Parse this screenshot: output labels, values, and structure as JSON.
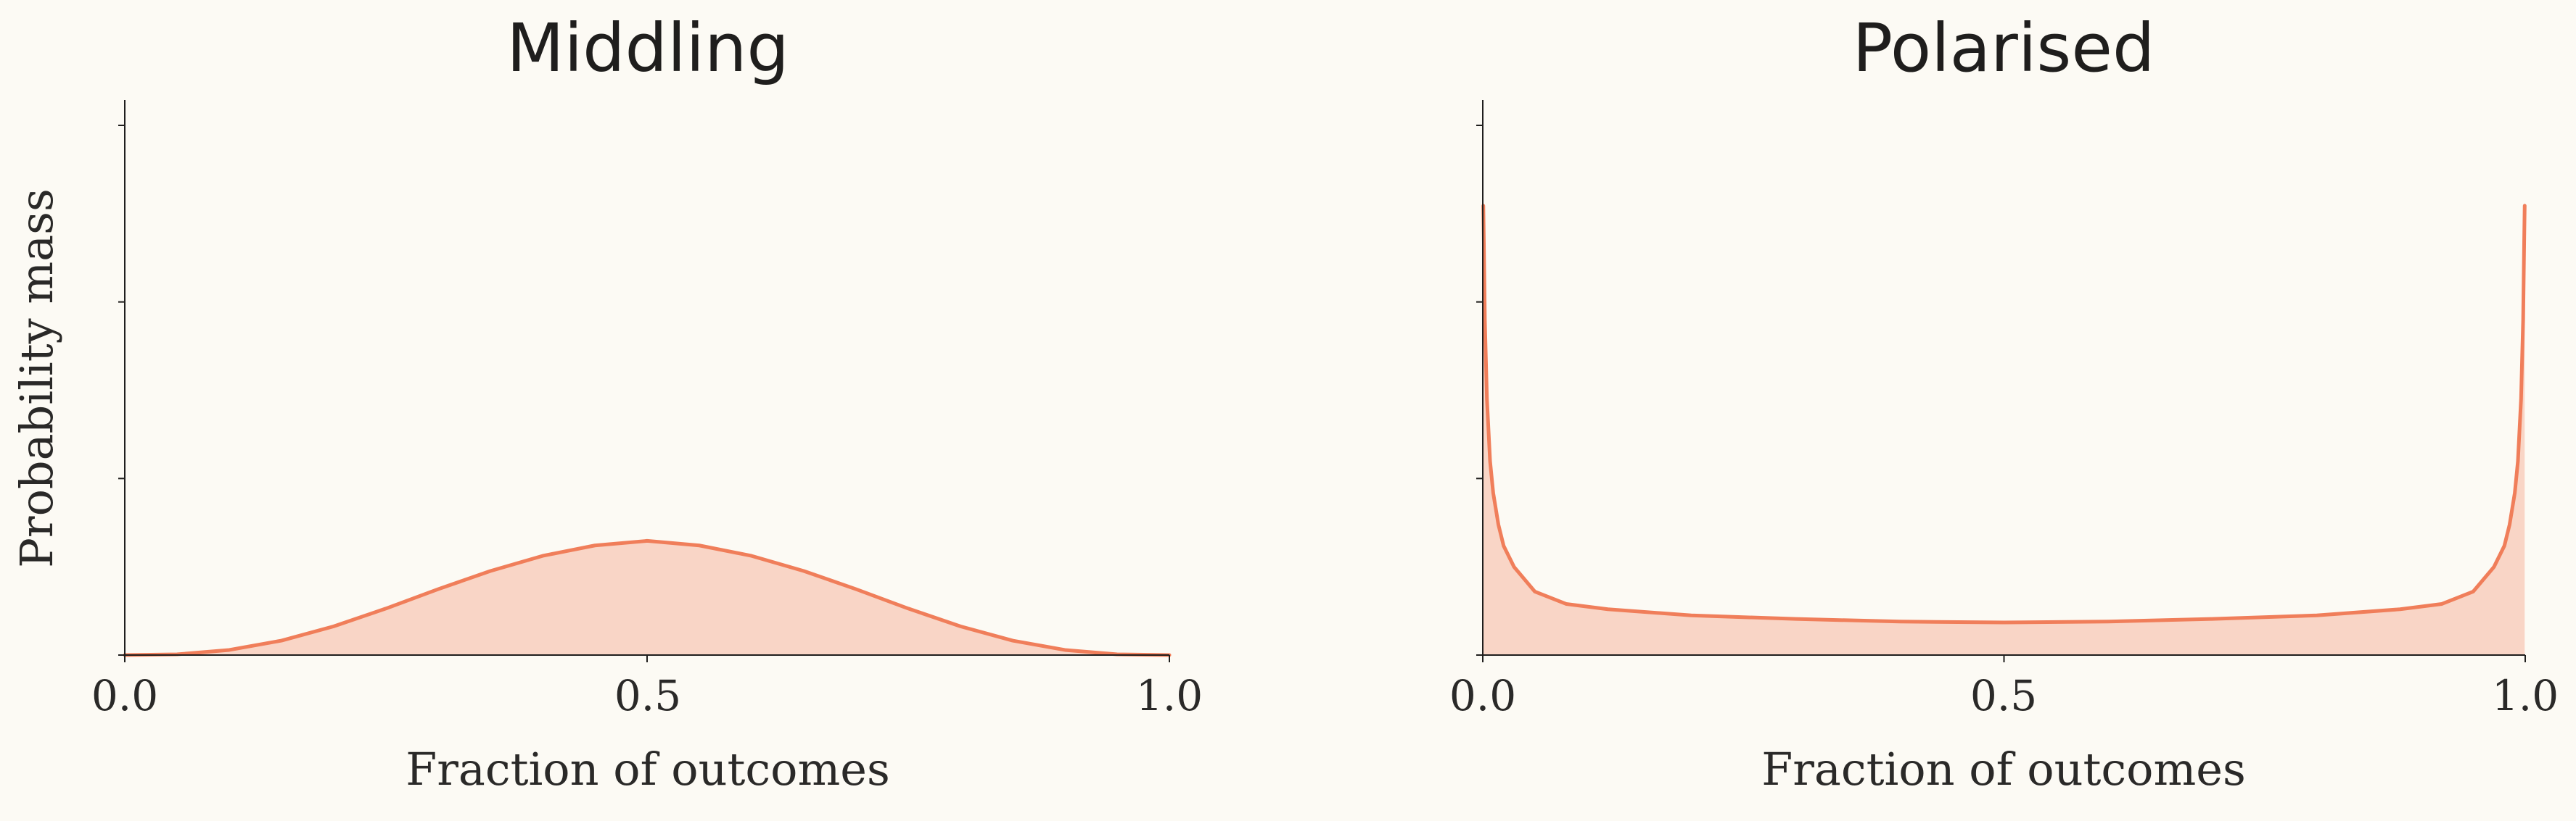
{
  "chart_data": [
    {
      "type": "area",
      "title": "Middling",
      "xlabel": "Fraction of outcomes",
      "ylabel": "Probability mass",
      "xlim": [
        0,
        1
      ],
      "ylim": [
        0,
        3.15
      ],
      "xticks": [
        "0.0",
        "0.5",
        "1.0"
      ],
      "yticks_count": 3,
      "grid": false,
      "legend": "none",
      "x": [
        0,
        0.05,
        0.1,
        0.15,
        0.2,
        0.25,
        0.3,
        0.35,
        0.4,
        0.45,
        0.5,
        0.55,
        0.6,
        0.65,
        0.7,
        0.75,
        0.8,
        0.85,
        0.9,
        0.95,
        1.0
      ],
      "y": [
        0.0,
        0.004,
        0.029,
        0.082,
        0.163,
        0.264,
        0.374,
        0.477,
        0.563,
        0.622,
        0.648,
        0.622,
        0.563,
        0.477,
        0.374,
        0.264,
        0.163,
        0.082,
        0.029,
        0.004,
        0.0
      ],
      "line_color": "#f07e5a",
      "fill_color": "#f9d5c6"
    },
    {
      "type": "area",
      "title": "Polarised",
      "xlabel": "Fraction of outcomes",
      "ylabel": "",
      "xlim": [
        0,
        1
      ],
      "ylim": [
        0,
        3.15
      ],
      "xticks": [
        "0.0",
        "0.5",
        "1.0"
      ],
      "yticks_count": 3,
      "grid": false,
      "legend": "none",
      "x": [
        0.0005,
        0.001,
        0.002,
        0.004,
        0.007,
        0.01,
        0.015,
        0.02,
        0.03,
        0.05,
        0.08,
        0.12,
        0.2,
        0.3,
        0.4,
        0.5,
        0.6,
        0.7,
        0.8,
        0.88,
        0.92,
        0.95,
        0.97,
        0.98,
        0.985,
        0.99,
        0.993,
        0.996,
        0.998,
        0.999,
        0.9995
      ],
      "y": [
        2.55,
        2.35,
        1.9,
        1.45,
        1.1,
        0.92,
        0.74,
        0.62,
        0.5,
        0.36,
        0.29,
        0.26,
        0.225,
        0.205,
        0.19,
        0.185,
        0.19,
        0.205,
        0.225,
        0.26,
        0.29,
        0.36,
        0.5,
        0.62,
        0.74,
        0.92,
        1.1,
        1.45,
        1.9,
        2.35,
        2.55
      ],
      "line_color": "#f07e5a",
      "fill_color": "#f9d5c6"
    }
  ]
}
